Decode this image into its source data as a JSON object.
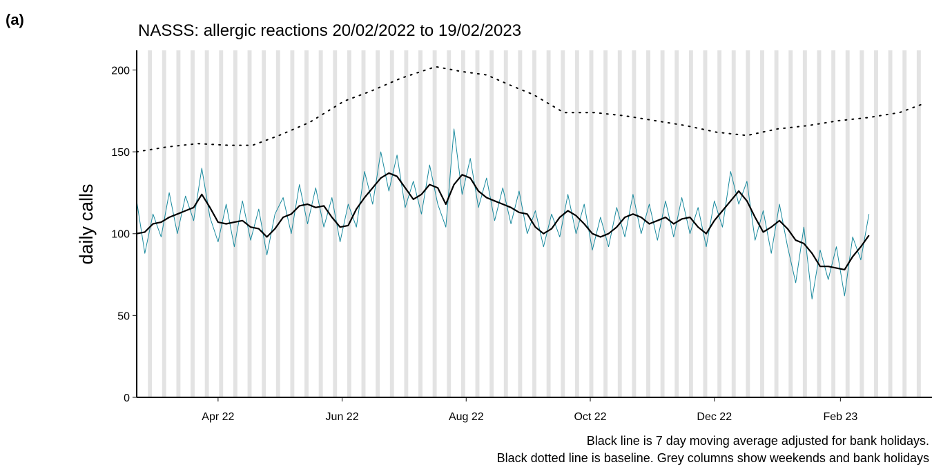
{
  "panel_label": "(a)",
  "chart_data": {
    "type": "line",
    "title": "NASSS: allergic reactions 20/02/2022 to 19/02/2023",
    "y_label": "daily calls",
    "notes": [
      "Black line is 7 day moving average adjusted for bank holidays.",
      "Black dotted line is baseline. Grey columns show weekends and bank holidays"
    ],
    "xlim": [
      0,
      391
    ],
    "xticks": [
      {
        "value": 40,
        "label": "Apr 22"
      },
      {
        "value": 101,
        "label": "Jun 22"
      },
      {
        "value": 162,
        "label": "Aug 22"
      },
      {
        "value": 223,
        "label": "Oct 22"
      },
      {
        "value": 284,
        "label": "Dec 22"
      },
      {
        "value": 346,
        "label": "Feb 23"
      }
    ],
    "ylim": [
      0,
      212
    ],
    "yticks": [
      0,
      50,
      100,
      150,
      200
    ],
    "series": [
      {
        "color": "#1a8a9e",
        "width": 1,
        "x": [
          0,
          4,
          8,
          12,
          16,
          20,
          24,
          28,
          32,
          36,
          40,
          44,
          48,
          52,
          56,
          60,
          64,
          68,
          72,
          76,
          80,
          84,
          88,
          92,
          96,
          100,
          104,
          108,
          112,
          116,
          120,
          124,
          128,
          132,
          136,
          140,
          144,
          148,
          152,
          156,
          160,
          164,
          168,
          172,
          176,
          180,
          184,
          188,
          192,
          196,
          200,
          204,
          208,
          212,
          216,
          220,
          224,
          228,
          232,
          236,
          240,
          244,
          248,
          252,
          256,
          260,
          264,
          268,
          272,
          276,
          280,
          284,
          288,
          292,
          296,
          300,
          304,
          308,
          312,
          316,
          320,
          324,
          328,
          332,
          336,
          340,
          344,
          348,
          352,
          356,
          360
        ],
        "values": [
          120,
          88,
          112,
          98,
          125,
          100,
          123,
          108,
          140,
          110,
          95,
          118,
          92,
          120,
          96,
          115,
          87,
          112,
          122,
          100,
          130,
          106,
          128,
          104,
          122,
          95,
          118,
          104,
          138,
          118,
          150,
          126,
          148,
          116,
          132,
          112,
          142,
          118,
          104,
          164,
          124,
          146,
          116,
          134,
          108,
          128,
          106,
          126,
          100,
          114,
          92,
          112,
          98,
          124,
          100,
          118,
          90,
          110,
          92,
          116,
          98,
          124,
          100,
          118,
          96,
          120,
          98,
          122,
          100,
          116,
          92,
          120,
          104,
          138,
          118,
          132,
          96,
          114,
          88,
          118,
          92,
          70,
          104,
          60,
          90,
          72,
          92,
          62,
          98,
          84,
          112
        ]
      },
      {
        "color": "#000000",
        "width": 2.2,
        "x": [
          0,
          4,
          8,
          12,
          16,
          20,
          24,
          28,
          32,
          36,
          40,
          44,
          48,
          52,
          56,
          60,
          64,
          68,
          72,
          76,
          80,
          84,
          88,
          92,
          96,
          100,
          104,
          108,
          112,
          116,
          120,
          124,
          128,
          132,
          136,
          140,
          144,
          148,
          152,
          156,
          160,
          164,
          168,
          172,
          176,
          180,
          184,
          188,
          192,
          196,
          200,
          204,
          208,
          212,
          216,
          220,
          224,
          228,
          232,
          236,
          240,
          244,
          248,
          252,
          256,
          260,
          264,
          268,
          272,
          276,
          280,
          284,
          288,
          292,
          296,
          300,
          304,
          308,
          312,
          316,
          320,
          324,
          328,
          332,
          336,
          340,
          344,
          348,
          352,
          356,
          360
        ],
        "values": [
          100,
          101,
          106,
          107,
          110,
          112,
          114,
          116,
          124,
          116,
          107,
          106,
          107,
          108,
          104,
          103,
          98,
          103,
          110,
          112,
          117,
          118,
          116,
          117,
          110,
          104,
          105,
          115,
          122,
          128,
          134,
          137,
          135,
          128,
          121,
          124,
          130,
          128,
          118,
          130,
          136,
          134,
          126,
          122,
          120,
          118,
          116,
          113,
          112,
          104,
          100,
          103,
          110,
          114,
          111,
          106,
          100,
          98,
          100,
          104,
          110,
          112,
          110,
          106,
          108,
          110,
          106,
          109,
          110,
          104,
          100,
          108,
          114,
          120,
          126,
          120,
          110,
          101,
          104,
          108,
          103,
          96,
          94,
          88,
          80,
          80,
          79,
          78,
          86,
          92,
          99
        ]
      },
      {
        "color": "#000000",
        "width": 2,
        "dash": "dotted",
        "x": [
          0,
          15,
          30,
          45,
          57,
          70,
          85,
          102,
          115,
          130,
          147,
          160,
          172,
          185,
          195,
          210,
          225,
          240,
          255,
          270,
          285,
          300,
          315,
          330,
          345,
          360,
          375,
          386
        ],
        "values": [
          150,
          153,
          155,
          154,
          154,
          160,
          168,
          181,
          187,
          195,
          202,
          199,
          197,
          190,
          185,
          174,
          174,
          172,
          169,
          166,
          162,
          160,
          164,
          166,
          169,
          171,
          174,
          179
        ]
      }
    ]
  }
}
